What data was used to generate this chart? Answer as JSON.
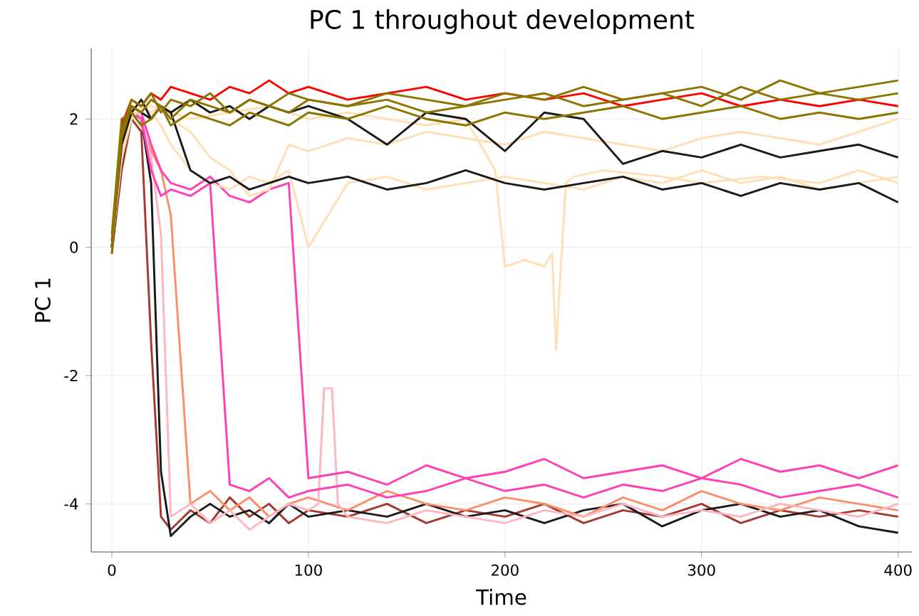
{
  "chart_data": {
    "type": "line",
    "title": "PC 1 throughout development",
    "xlabel": "Time",
    "ylabel": "PC 1",
    "xlim": [
      -10.5,
      407
    ],
    "ylim": [
      -4.75,
      3.1
    ],
    "xticks": [
      0,
      100,
      200,
      300,
      400
    ],
    "yticks": [
      -4,
      -2,
      0,
      2
    ],
    "grid": true,
    "line_style": "solid",
    "marker": "none",
    "x": [
      0,
      5,
      10,
      15,
      20,
      25,
      30,
      40,
      50,
      60,
      70,
      80,
      90,
      100,
      120,
      140,
      160,
      180,
      200,
      220,
      240,
      260,
      280,
      300,
      320,
      340,
      360,
      380,
      400
    ],
    "series": [
      {
        "color": "#a33a32",
        "values": [
          -0.1,
          1.2,
          2.0,
          1.8,
          -1.5,
          -4.2,
          -4.4,
          -4.1,
          -4.3,
          -3.9,
          -4.2,
          -4.0,
          -4.3,
          -4.1,
          -4.2,
          -4.0,
          -4.3,
          -4.1,
          -4.2,
          -4.0,
          -4.3,
          -4.1,
          -4.2,
          -4.0,
          -4.3,
          -4.1,
          -4.2,
          -4.1,
          -4.2
        ]
      },
      {
        "color": "#1a1a1a",
        "values": [
          0,
          1.5,
          2.2,
          2.0,
          1.0,
          -3.5,
          -4.5,
          -4.2,
          -4.0,
          -4.2,
          -4.1,
          -4.3,
          -4.0,
          -4.2,
          -4.1,
          -4.2,
          -4.0,
          -4.2,
          -4.1,
          -4.3,
          -4.1,
          -4.0,
          -4.35,
          -4.1,
          -4.0,
          -4.2,
          -4.1,
          -4.35,
          -4.45
        ]
      },
      {
        "color": "#f99069",
        "values": [
          0.1,
          1.8,
          2.1,
          1.9,
          1.5,
          1.2,
          0.5,
          -4.0,
          -3.8,
          -4.1,
          -3.9,
          -4.2,
          -4.0,
          -3.9,
          -4.1,
          -3.8,
          -4.0,
          -4.1,
          -3.9,
          -4.0,
          -4.2,
          -3.9,
          -4.1,
          -3.8,
          -4.0,
          -4.1,
          -3.9,
          -4.0,
          -4.1
        ]
      },
      {
        "color": "#ffb6c1",
        "x": [
          0,
          5,
          10,
          15,
          20,
          25,
          30,
          40,
          50,
          60,
          70,
          80,
          90,
          100,
          105,
          108,
          112,
          115,
          120,
          140,
          160,
          180,
          200,
          220,
          240,
          260,
          280,
          300,
          320,
          340,
          360,
          380,
          400
        ],
        "values": [
          0,
          1.6,
          2.2,
          2.0,
          1.4,
          0.2,
          -4.2,
          -4.0,
          -4.3,
          -4.1,
          -4.4,
          -4.2,
          -4.0,
          -4.1,
          -4.0,
          -2.2,
          -2.2,
          -4.0,
          -4.2,
          -4.3,
          -4.1,
          -4.2,
          -4.3,
          -4.1,
          -4.2,
          -4.0,
          -4.2,
          -4.1,
          -4.2,
          -4.0,
          -4.1,
          -4.2,
          -4.0
        ]
      },
      {
        "color": "#ff40b4",
        "values": [
          0,
          1.8,
          2.2,
          2.1,
          1.6,
          1.2,
          1.0,
          0.9,
          1.1,
          0.8,
          0.7,
          0.9,
          1.0,
          -3.6,
          -3.5,
          -3.7,
          -3.4,
          -3.6,
          -3.5,
          -3.3,
          -3.6,
          -3.5,
          -3.4,
          -3.6,
          -3.3,
          -3.5,
          -3.4,
          -3.6,
          -3.4
        ]
      },
      {
        "color": "#ff40b4",
        "values": [
          0.1,
          1.7,
          2.1,
          2.0,
          1.2,
          0.8,
          0.9,
          0.8,
          1.0,
          -3.7,
          -3.8,
          -3.6,
          -3.9,
          -3.8,
          -3.7,
          -3.9,
          -3.8,
          -3.6,
          -3.8,
          -3.7,
          -3.9,
          -3.7,
          -3.8,
          -3.6,
          -3.7,
          -3.9,
          -3.8,
          -3.7,
          -3.9
        ]
      },
      {
        "color": "#ffdfb5",
        "values": [
          0,
          1.5,
          2.0,
          2.2,
          2.1,
          1.9,
          1.6,
          1.2,
          1.0,
          0.9,
          1.1,
          1.0,
          1.2,
          0.0,
          1.0,
          1.1,
          0.9,
          1.0,
          1.1,
          1.0,
          0.9,
          1.1,
          1.0,
          1.2,
          1.0,
          1.1,
          0.9,
          1.0,
          1.1
        ]
      },
      {
        "color": "#ffdfb5",
        "x": [
          0,
          5,
          10,
          20,
          40,
          60,
          80,
          100,
          120,
          140,
          160,
          180,
          195,
          200,
          210,
          220,
          224,
          226,
          228,
          231,
          235,
          250,
          280,
          300,
          330,
          360,
          380,
          400
        ],
        "values": [
          0,
          1.6,
          2.1,
          2.2,
          2.0,
          2.1,
          2.2,
          2.0,
          2.1,
          2.0,
          1.9,
          2.0,
          1.2,
          -0.3,
          -0.2,
          -0.3,
          -0.1,
          -1.6,
          -0.5,
          1.0,
          1.1,
          1.2,
          1.1,
          1.0,
          1.1,
          1.0,
          1.2,
          1.0
        ]
      },
      {
        "color": "#ffdfb5",
        "values": [
          0,
          1.4,
          2.0,
          2.2,
          2.1,
          2.2,
          2.0,
          1.8,
          1.4,
          1.2,
          0.8,
          0.9,
          1.6,
          1.5,
          1.7,
          1.6,
          1.8,
          1.7,
          1.6,
          1.8,
          1.7,
          1.6,
          1.5,
          1.7,
          1.8,
          1.7,
          1.6,
          1.8,
          2.0
        ]
      },
      {
        "color": "#1a1a1a",
        "values": [
          0,
          1.8,
          2.2,
          2.1,
          2.0,
          2.2,
          2.1,
          1.2,
          1.0,
          1.1,
          0.9,
          1.0,
          1.1,
          1.0,
          1.1,
          0.9,
          1.0,
          1.2,
          1.0,
          0.9,
          1.0,
          1.1,
          0.9,
          1.0,
          0.8,
          1.0,
          0.9,
          1.0,
          0.7
        ]
      },
      {
        "color": "#1a1a1a",
        "values": [
          0,
          1.6,
          2.1,
          2.3,
          2.0,
          2.2,
          2.1,
          2.3,
          2.1,
          2.2,
          2.0,
          2.2,
          2.1,
          2.2,
          2.0,
          1.6,
          2.1,
          2.0,
          1.5,
          2.1,
          2.0,
          1.3,
          1.5,
          1.4,
          1.6,
          1.4,
          1.5,
          1.6,
          1.4
        ]
      },
      {
        "color": "#ff0000",
        "values": [
          0,
          1.9,
          2.3,
          2.2,
          2.4,
          2.3,
          2.5,
          2.4,
          2.3,
          2.5,
          2.4,
          2.6,
          2.4,
          2.5,
          2.3,
          2.4,
          2.5,
          2.3,
          2.4,
          2.3,
          2.4,
          2.2,
          2.3,
          2.4,
          2.2,
          2.3,
          2.2,
          2.3,
          2.2
        ]
      },
      {
        "color": "#8b7500",
        "values": [
          -0.1,
          1.8,
          2.3,
          2.2,
          2.4,
          2.1,
          2.3,
          2.2,
          2.4,
          2.1,
          2.3,
          2.2,
          2.4,
          2.3,
          2.2,
          2.4,
          2.3,
          2.2,
          2.4,
          2.3,
          2.5,
          2.3,
          2.4,
          2.5,
          2.3,
          2.6,
          2.4,
          2.5,
          2.6
        ]
      },
      {
        "color": "#8b7500",
        "values": [
          0.2,
          2.0,
          2.1,
          1.9,
          2.0,
          2.2,
          1.9,
          2.1,
          2.0,
          1.9,
          2.1,
          2.0,
          1.9,
          2.1,
          2.0,
          2.2,
          2.0,
          1.9,
          2.1,
          2.0,
          2.1,
          2.2,
          2.0,
          2.1,
          2.2,
          2.0,
          2.1,
          2.0,
          2.1
        ]
      },
      {
        "color": "#8b7500",
        "values": [
          0,
          1.7,
          2.2,
          2.1,
          2.3,
          2.2,
          2.0,
          2.3,
          2.2,
          2.1,
          2.3,
          2.2,
          2.1,
          2.3,
          2.2,
          2.3,
          2.1,
          2.2,
          2.3,
          2.4,
          2.2,
          2.3,
          2.4,
          2.2,
          2.5,
          2.3,
          2.4,
          2.3,
          2.4
        ]
      }
    ]
  }
}
